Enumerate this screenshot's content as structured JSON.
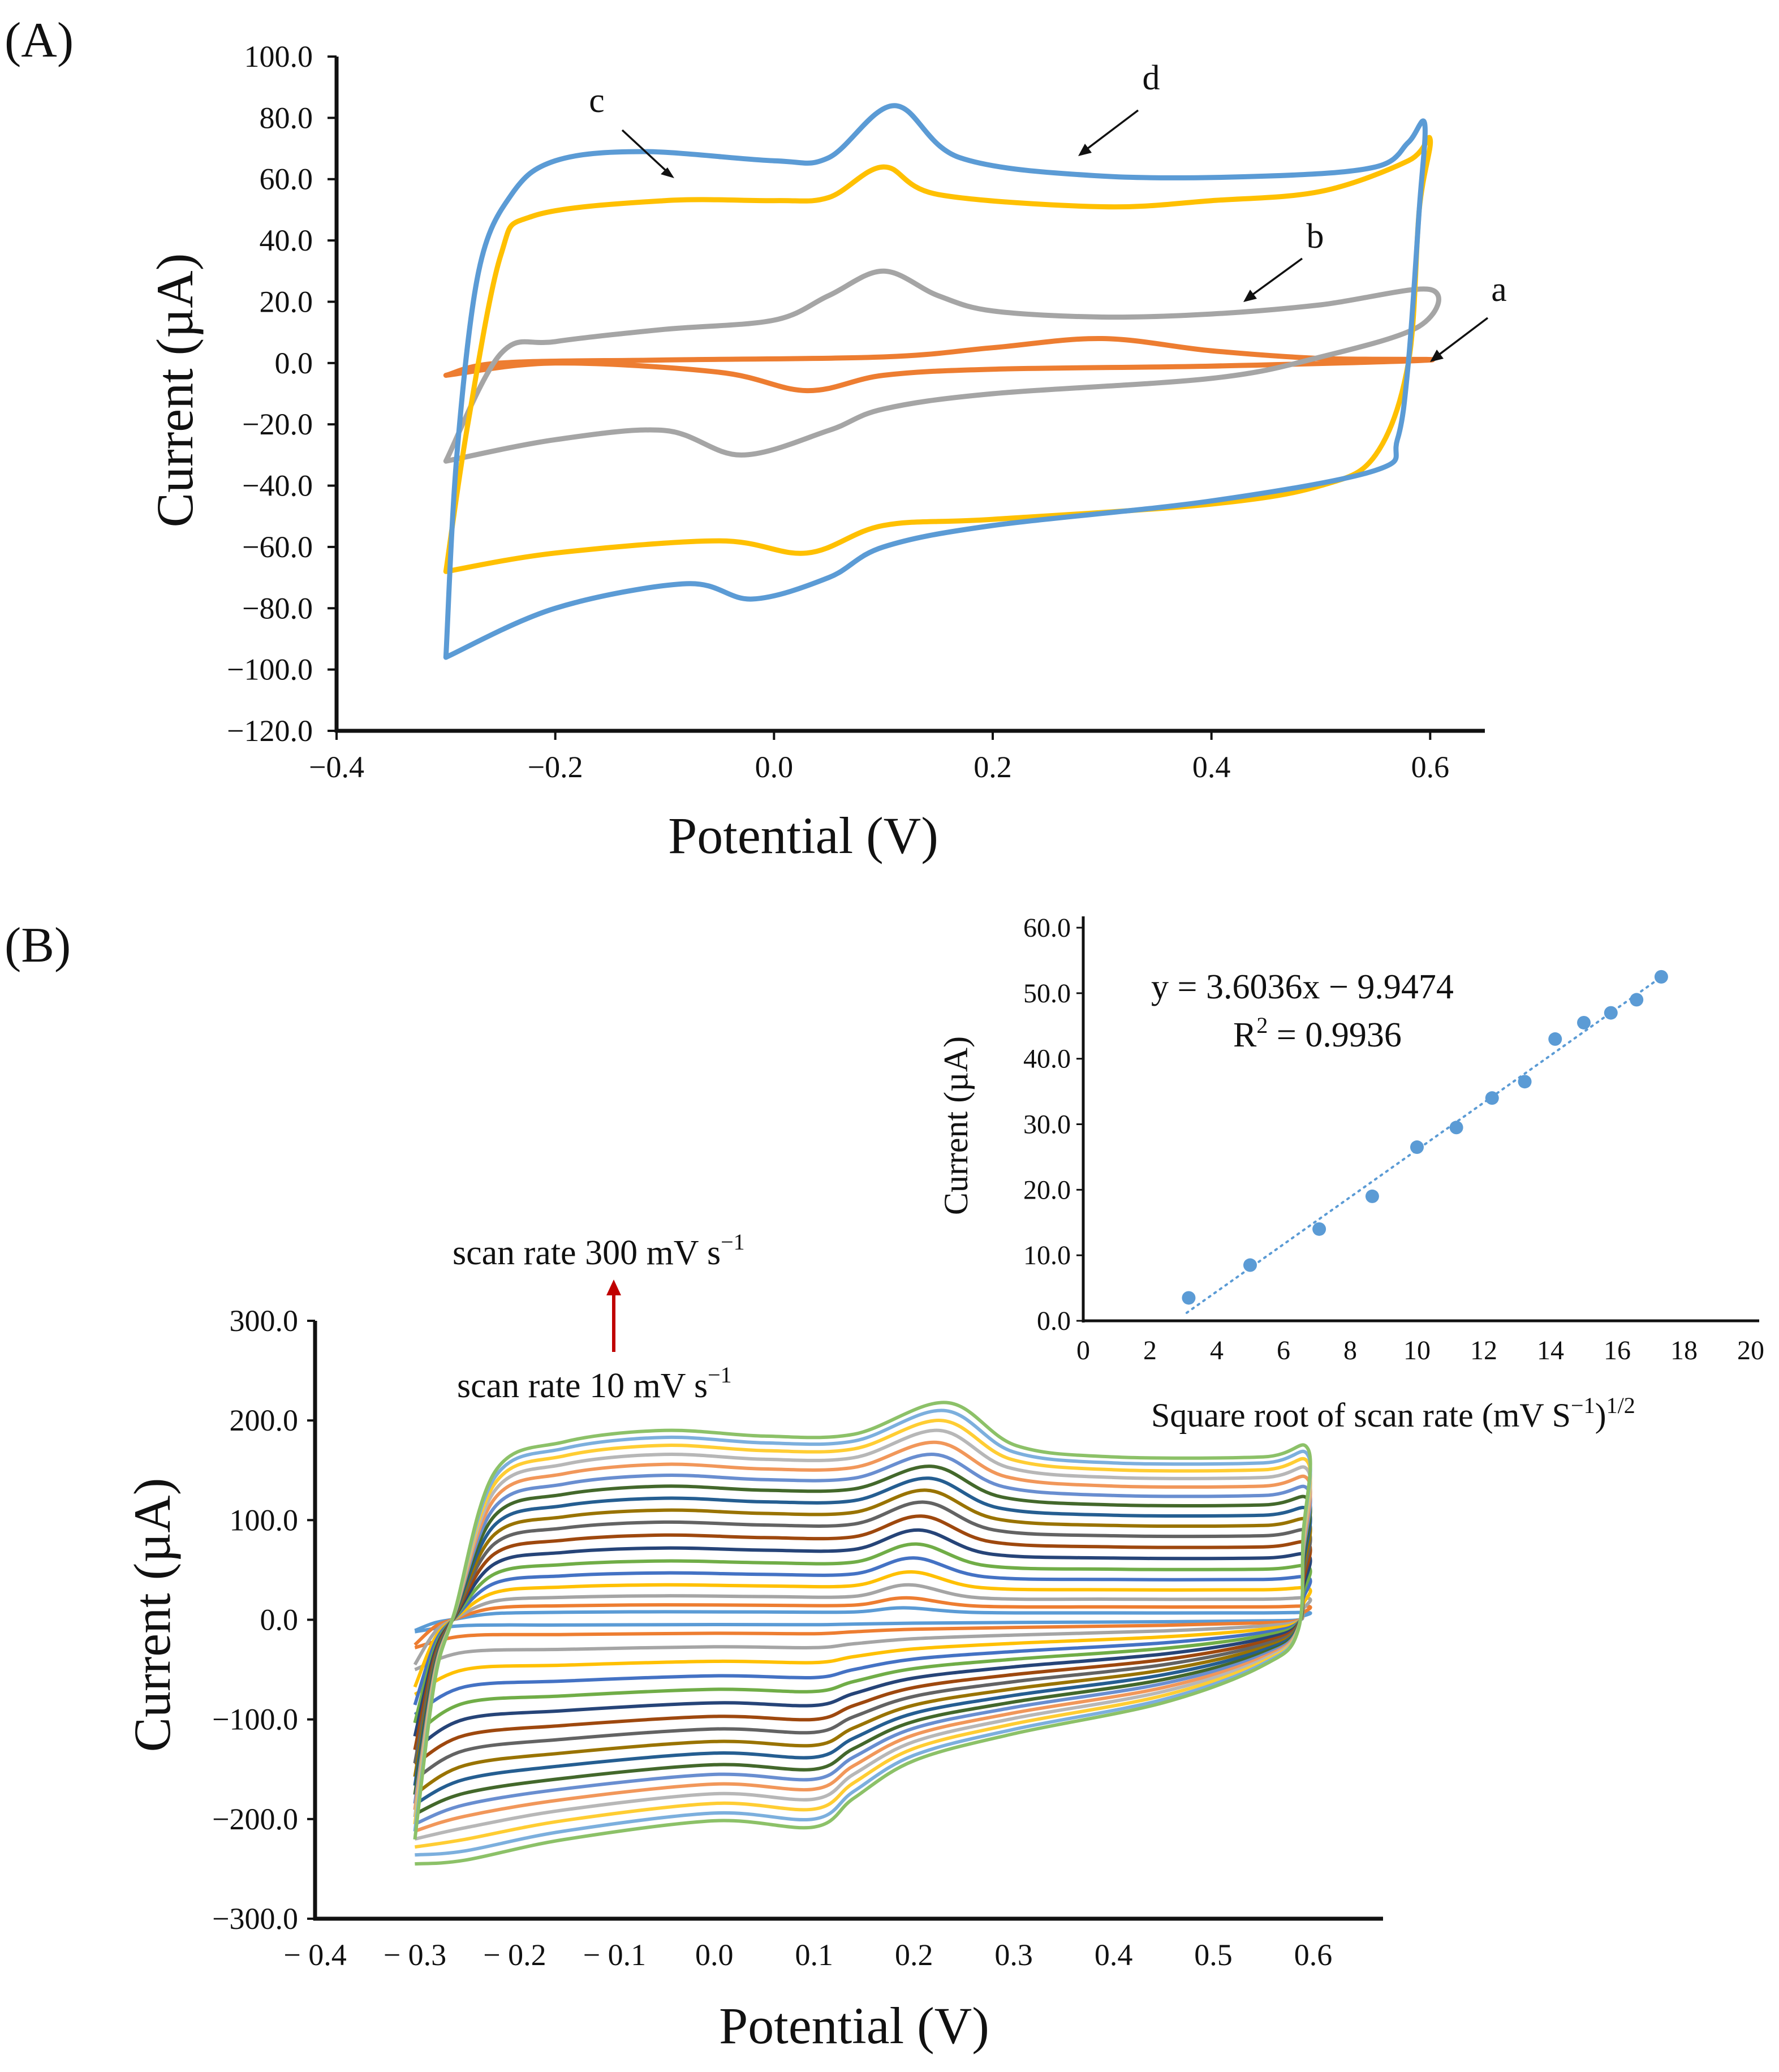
{
  "panel_a": {
    "label": "(A)",
    "chart_data": {
      "type": "line",
      "title": "",
      "xlabel": "Potential (V)",
      "ylabel": "Current (µA)",
      "xlim": [
        -0.4,
        0.65
      ],
      "ylim": [
        -120,
        100
      ],
      "x_ticks": [
        "−0.4",
        "−0.2",
        "0.0",
        "0.2",
        "0.4",
        "0.6"
      ],
      "y_ticks": [
        "100.0",
        "80.0",
        "60.0",
        "40.0",
        "20.0",
        "0.0",
        "−20.0",
        "−40.0",
        "−60.0",
        "−80.0",
        "−100.0",
        "−120.0"
      ],
      "series": [
        {
          "name": "a",
          "color": "#ed7d31",
          "forward": [
            [
              -0.3,
              -4
            ],
            [
              -0.25,
              0
            ],
            [
              -0.1,
              1
            ],
            [
              0.1,
              2
            ],
            [
              0.2,
              5
            ],
            [
              0.3,
              8
            ],
            [
              0.4,
              4
            ],
            [
              0.5,
              1.5
            ],
            [
              0.6,
              1
            ]
          ],
          "reverse": [
            [
              0.6,
              1
            ],
            [
              0.4,
              -1
            ],
            [
              0.2,
              -2
            ],
            [
              0.1,
              -4
            ],
            [
              0.03,
              -9
            ],
            [
              -0.05,
              -3
            ],
            [
              -0.2,
              0
            ],
            [
              -0.3,
              -4
            ]
          ]
        },
        {
          "name": "b",
          "color": "#a5a5a5",
          "forward": [
            [
              -0.3,
              -32
            ],
            [
              -0.25,
              3
            ],
            [
              -0.2,
              7
            ],
            [
              -0.1,
              11
            ],
            [
              0,
              14
            ],
            [
              0.05,
              22
            ],
            [
              0.1,
              30
            ],
            [
              0.15,
              22
            ],
            [
              0.2,
              17
            ],
            [
              0.3,
              15
            ],
            [
              0.4,
              16
            ],
            [
              0.5,
              19
            ],
            [
              0.6,
              24
            ]
          ],
          "reverse": [
            [
              0.6,
              24
            ],
            [
              0.59,
              12
            ],
            [
              0.5,
              2
            ],
            [
              0.4,
              -5
            ],
            [
              0.2,
              -10
            ],
            [
              0.1,
              -15
            ],
            [
              0.05,
              -22
            ],
            [
              -0.03,
              -30
            ],
            [
              -0.1,
              -22
            ],
            [
              -0.2,
              -25
            ],
            [
              -0.3,
              -32
            ]
          ]
        },
        {
          "name": "c",
          "color": "#ffc000",
          "forward": [
            [
              -0.3,
              -68
            ],
            [
              -0.28,
              -20
            ],
            [
              -0.25,
              35
            ],
            [
              -0.22,
              48
            ],
            [
              -0.1,
              53
            ],
            [
              0,
              53
            ],
            [
              0.05,
              54
            ],
            [
              0.1,
              64
            ],
            [
              0.15,
              55
            ],
            [
              0.3,
              51
            ],
            [
              0.4,
              53
            ],
            [
              0.5,
              56
            ],
            [
              0.58,
              66
            ],
            [
              0.6,
              73
            ]
          ],
          "reverse": [
            [
              0.6,
              73
            ],
            [
              0.59,
              50
            ],
            [
              0.58,
              0
            ],
            [
              0.55,
              -30
            ],
            [
              0.5,
              -40
            ],
            [
              0.4,
              -46
            ],
            [
              0.2,
              -51
            ],
            [
              0.1,
              -53
            ],
            [
              0.03,
              -62
            ],
            [
              -0.05,
              -58
            ],
            [
              -0.2,
              -62
            ],
            [
              -0.3,
              -68
            ]
          ]
        },
        {
          "name": "d",
          "color": "#5b9bd5",
          "forward": [
            [
              -0.3,
              -96
            ],
            [
              -0.29,
              -30
            ],
            [
              -0.27,
              30
            ],
            [
              -0.24,
              55
            ],
            [
              -0.2,
              66
            ],
            [
              -0.12,
              69
            ],
            [
              0,
              66
            ],
            [
              0.05,
              67
            ],
            [
              0.11,
              84
            ],
            [
              0.17,
              67
            ],
            [
              0.3,
              61
            ],
            [
              0.45,
              61
            ],
            [
              0.55,
              64
            ],
            [
              0.58,
              72
            ],
            [
              0.595,
              78
            ]
          ],
          "reverse": [
            [
              0.595,
              78
            ],
            [
              0.59,
              50
            ],
            [
              0.58,
              0
            ],
            [
              0.57,
              -25
            ],
            [
              0.55,
              -35
            ],
            [
              0.4,
              -45
            ],
            [
              0.2,
              -53
            ],
            [
              0.1,
              -60
            ],
            [
              0.05,
              -70
            ],
            [
              -0.02,
              -77
            ],
            [
              -0.08,
              -72
            ],
            [
              -0.2,
              -80
            ],
            [
              -0.3,
              -96
            ]
          ]
        }
      ],
      "annotations": [
        "a",
        "b",
        "c",
        "d"
      ]
    }
  },
  "panel_b": {
    "label": "(B)",
    "chart_data": {
      "type": "line",
      "title": "",
      "xlabel": "Potential (V)",
      "ylabel": "Current (µA)",
      "xlim": [
        -0.4,
        0.67
      ],
      "ylim": [
        -300,
        300
      ],
      "x_ticks": [
        "− 0.4",
        "− 0.3",
        "− 0.2",
        "− 0.1",
        "0.0",
        "0.1",
        "0.2",
        "0.3",
        "0.4",
        "0.5",
        "0.6"
      ],
      "y_ticks": [
        "300.0",
        "200.0",
        "100.0",
        "0.0",
        "−100.0",
        "−200.0",
        "−300.0"
      ],
      "scan_rate_top": "scan rate 300 mV s",
      "scan_rate_top_sup": "−1",
      "scan_rate_bottom": "scan rate 10 mV s",
      "scan_rate_bottom_sup": "−1",
      "series_colors": [
        "#5b9bd5",
        "#ed7d31",
        "#a5a5a5",
        "#ffc000",
        "#4472c4",
        "#70ad47",
        "#264478",
        "#9e480e",
        "#636363",
        "#997300",
        "#255e91",
        "#43682b",
        "#698ed0",
        "#f1975a",
        "#b7b7b7",
        "#ffcd33",
        "#7cafdd",
        "#8cc168"
      ],
      "forward_peak_currents": [
        12,
        22,
        35,
        48,
        62,
        76,
        90,
        104,
        118,
        130,
        142,
        154,
        166,
        178,
        190,
        200,
        210,
        218
      ],
      "forward_plateau_currents": [
        8,
        15,
        24,
        35,
        47,
        59,
        72,
        85,
        98,
        110,
        122,
        134,
        145,
        156,
        166,
        175,
        183,
        190
      ],
      "reverse_plateau_currents": [
        -5,
        -14,
        -28,
        -43,
        -58,
        -72,
        -86,
        -100,
        -113,
        -126,
        -138,
        -150,
        -160,
        -170,
        -180,
        -190,
        -200,
        -208
      ],
      "reverse_min_currents": [
        -12,
        -28,
        -50,
        -75,
        -95,
        -115,
        -130,
        -145,
        -160,
        -175,
        -185,
        -195,
        -205,
        -212,
        -220,
        -228,
        -236,
        -245
      ]
    }
  },
  "inset": {
    "chart_data": {
      "type": "scatter",
      "xlabel": "Square root of scan rate (mV S",
      "xlabel_sup1": "−1",
      "xlabel_mid": ")",
      "xlabel_sup2": "1/2",
      "ylabel": "Current (µA)",
      "xlim": [
        0,
        20
      ],
      "ylim": [
        0,
        60
      ],
      "x_ticks": [
        "0",
        "2",
        "4",
        "6",
        "8",
        "10",
        "12",
        "14",
        "16",
        "18",
        "20"
      ],
      "y_ticks": [
        "60.0",
        "50.0",
        "40.0",
        "30.0",
        "20.0",
        "10.0",
        "0.0"
      ],
      "points": [
        [
          3.16,
          3.5
        ],
        [
          5.0,
          8.5
        ],
        [
          7.07,
          14.0
        ],
        [
          8.66,
          19.0
        ],
        [
          10.0,
          26.5
        ],
        [
          11.18,
          29.5
        ],
        [
          12.25,
          34.0
        ],
        [
          13.23,
          36.5
        ],
        [
          14.14,
          43.0
        ],
        [
          15.0,
          45.5
        ],
        [
          15.81,
          47.0
        ],
        [
          16.58,
          49.0
        ],
        [
          17.32,
          52.5
        ]
      ],
      "fit": {
        "slope": 3.6036,
        "intercept": -9.9474,
        "x_range": [
          3.1,
          17.4
        ]
      },
      "equation": "y  = 3.6036x − 9.9474",
      "r2_prefix": "R",
      "r2_sup": "2",
      "r2_value": " = 0.9936",
      "color": "#5b9bd5"
    }
  }
}
